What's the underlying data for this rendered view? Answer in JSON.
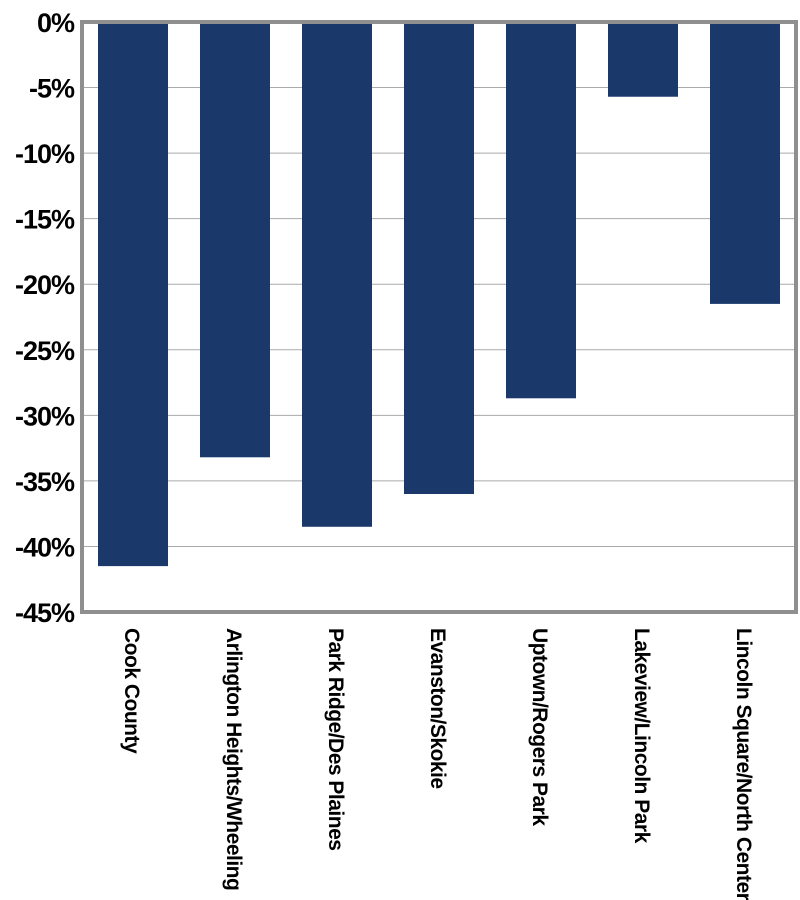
{
  "chart_data": {
    "type": "bar",
    "categories": [
      "Cook County",
      "Arlington Heights/Wheeling",
      "Park Ridge/Des Plaines",
      "Evanston/Skokie",
      "Uptown/Rogers Park",
      "Lakeview/Lincoln Park",
      "Lincoln Square/North Center"
    ],
    "values": [
      -41.5,
      -33.2,
      -38.5,
      -36.0,
      -28.7,
      -5.7,
      -21.5
    ],
    "ylim": [
      -45,
      0
    ],
    "yticks": [
      "0%",
      "-5%",
      "-10%",
      "-15%",
      "-20%",
      "-25%",
      "-30%",
      "-35%",
      "-40%",
      "-45%"
    ],
    "ytick_values": [
      0,
      -5,
      -10,
      -15,
      -20,
      -25,
      -30,
      -35,
      -40,
      -45
    ],
    "grid": true,
    "colors": {
      "bar": "#1a386a",
      "grid": "#aaaaaa",
      "frame": "#8f8f8f"
    }
  }
}
